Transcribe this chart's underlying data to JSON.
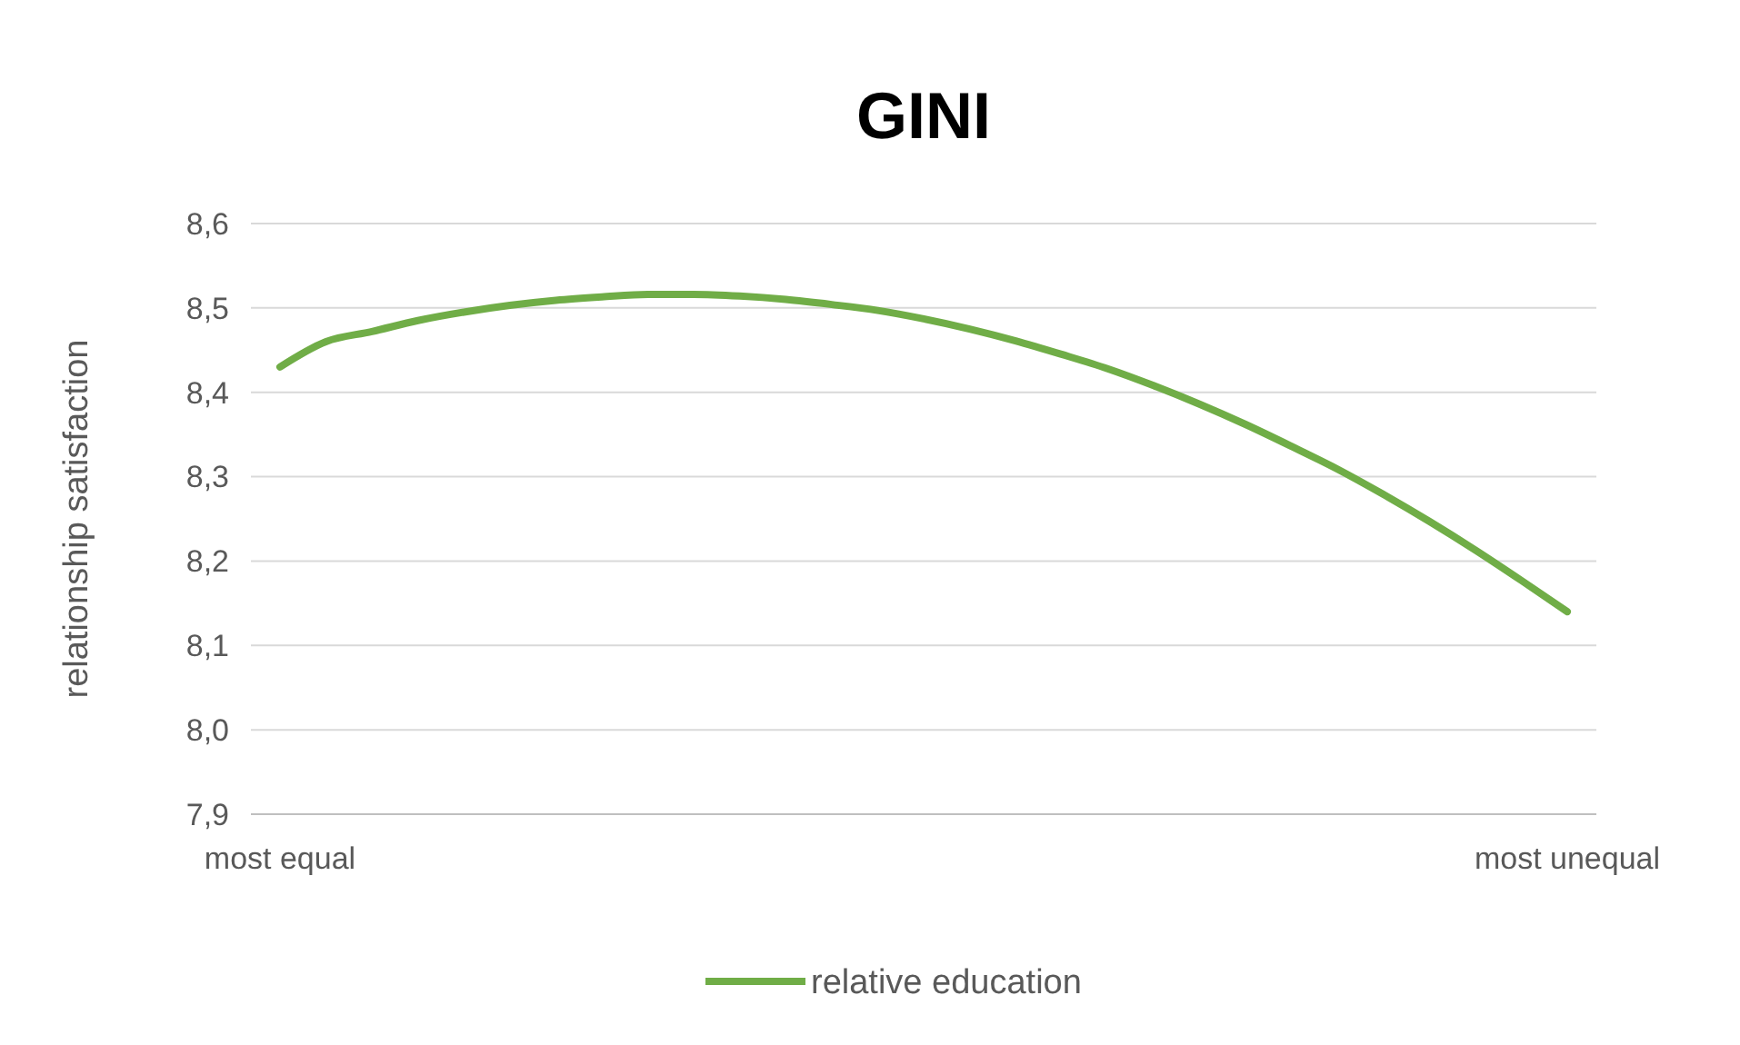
{
  "chart_data": {
    "type": "line",
    "title": "GINI",
    "ylabel": "relationship satisfaction",
    "categories": [
      "most equal",
      null,
      null,
      null,
      null,
      null,
      null,
      null,
      null,
      null,
      null,
      null,
      null,
      null,
      null,
      null,
      null,
      null,
      null,
      null,
      null,
      null,
      null,
      null,
      null,
      null,
      null,
      null,
      "most unequal"
    ],
    "series": [
      {
        "name": "relative education",
        "color": "#70ad47",
        "values": [
          8.43,
          8.46,
          8.472,
          8.485,
          8.495,
          8.503,
          8.509,
          8.513,
          8.516,
          8.516,
          8.514,
          8.51,
          8.504,
          8.497,
          8.487,
          8.475,
          8.461,
          8.445,
          8.428,
          8.408,
          8.386,
          8.362,
          8.336,
          8.309,
          8.279,
          8.247,
          8.213,
          8.177,
          8.14
        ]
      }
    ],
    "ylim": [
      7.9,
      8.6
    ],
    "yticks": [
      {
        "value": 7.9,
        "label": "7,9"
      },
      {
        "value": 8.0,
        "label": "8,0"
      },
      {
        "value": 8.1,
        "label": "8,1"
      },
      {
        "value": 8.2,
        "label": "8,2"
      },
      {
        "value": 8.3,
        "label": "8,3"
      },
      {
        "value": 8.4,
        "label": "8,4"
      },
      {
        "value": 8.5,
        "label": "8,5"
      },
      {
        "value": 8.6,
        "label": "8,6"
      }
    ],
    "grid": "y",
    "legend": "bottom",
    "marker": "none",
    "line_style": "solid"
  }
}
